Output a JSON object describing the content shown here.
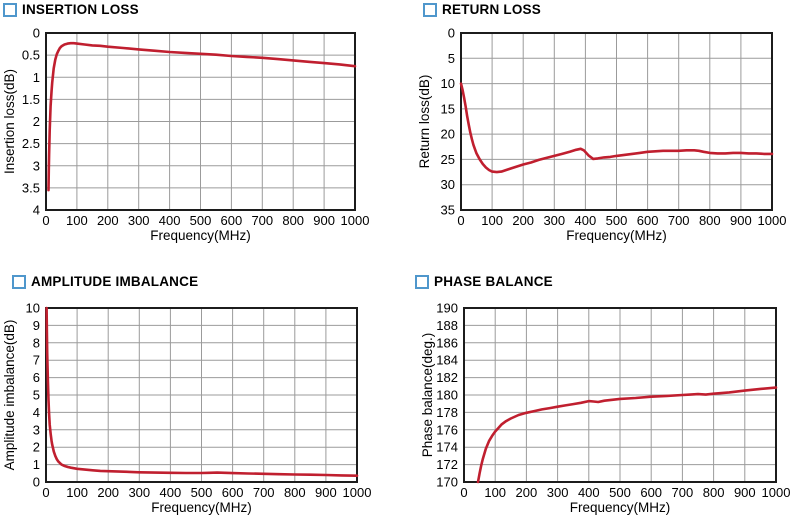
{
  "colors": {
    "curve": "#c01f2f",
    "grid_major": "#9b9b9b",
    "axis_border": "#1c1c1c",
    "title_square": "#4f97cc",
    "text": "#000000",
    "background": "#ffffff"
  },
  "chart_data": [
    {
      "type": "line",
      "title": "INSERTION LOSS",
      "xlabel": "Frequency(MHz)",
      "ylabel": "Insertion loss(dB)",
      "xlim": [
        0,
        1000
      ],
      "ylim": [
        0,
        4
      ],
      "y_inverted": true,
      "grid": "major",
      "legend": "none",
      "xticks": [
        0,
        100,
        200,
        300,
        400,
        500,
        600,
        700,
        800,
        900,
        1000
      ],
      "yticks": [
        0,
        0.5,
        1,
        1.5,
        2,
        2.5,
        3,
        3.5,
        4
      ],
      "series": [
        {
          "name": "Insertion loss",
          "points": [
            [
              8,
              3.55
            ],
            [
              9,
              3.1
            ],
            [
              10,
              2.75
            ],
            [
              12,
              2.2
            ],
            [
              15,
              1.65
            ],
            [
              18,
              1.3
            ],
            [
              20,
              1.12
            ],
            [
              25,
              0.8
            ],
            [
              30,
              0.6
            ],
            [
              35,
              0.48
            ],
            [
              40,
              0.4
            ],
            [
              45,
              0.34
            ],
            [
              50,
              0.3
            ],
            [
              60,
              0.26
            ],
            [
              70,
              0.24
            ],
            [
              80,
              0.23
            ],
            [
              90,
              0.23
            ],
            [
              100,
              0.24
            ],
            [
              125,
              0.26
            ],
            [
              150,
              0.28
            ],
            [
              175,
              0.29
            ],
            [
              200,
              0.31
            ],
            [
              250,
              0.34
            ],
            [
              300,
              0.37
            ],
            [
              350,
              0.4
            ],
            [
              400,
              0.43
            ],
            [
              450,
              0.45
            ],
            [
              500,
              0.47
            ],
            [
              550,
              0.49
            ],
            [
              600,
              0.52
            ],
            [
              650,
              0.54
            ],
            [
              700,
              0.56
            ],
            [
              750,
              0.59
            ],
            [
              800,
              0.62
            ],
            [
              850,
              0.65
            ],
            [
              900,
              0.68
            ],
            [
              950,
              0.71
            ],
            [
              1000,
              0.75
            ]
          ]
        }
      ]
    },
    {
      "type": "line",
      "title": "RETURN LOSS",
      "xlabel": "Frequency(MHz)",
      "ylabel": "Return loss(dB)",
      "xlim": [
        0,
        1000
      ],
      "ylim": [
        0,
        35
      ],
      "y_inverted": true,
      "grid": "major",
      "legend": "none",
      "xticks": [
        0,
        100,
        200,
        300,
        400,
        500,
        600,
        700,
        800,
        900,
        1000
      ],
      "yticks": [
        0,
        5,
        10,
        15,
        20,
        25,
        30,
        35
      ],
      "series": [
        {
          "name": "Return loss",
          "points": [
            [
              0,
              10
            ],
            [
              5,
              11.3
            ],
            [
              10,
              12.8
            ],
            [
              15,
              14.6
            ],
            [
              20,
              16.5
            ],
            [
              25,
              18.2
            ],
            [
              30,
              19.7
            ],
            [
              35,
              21
            ],
            [
              40,
              22.1
            ],
            [
              45,
              23
            ],
            [
              50,
              23.8
            ],
            [
              60,
              25
            ],
            [
              70,
              25.9
            ],
            [
              80,
              26.6
            ],
            [
              90,
              27.1
            ],
            [
              100,
              27.4
            ],
            [
              115,
              27.5
            ],
            [
              130,
              27.4
            ],
            [
              150,
              27
            ],
            [
              175,
              26.5
            ],
            [
              200,
              26
            ],
            [
              225,
              25.6
            ],
            [
              250,
              25.1
            ],
            [
              275,
              24.7
            ],
            [
              300,
              24.3
            ],
            [
              325,
              23.9
            ],
            [
              350,
              23.5
            ],
            [
              370,
              23.1
            ],
            [
              385,
              22.9
            ],
            [
              395,
              23.2
            ],
            [
              410,
              24.2
            ],
            [
              425,
              24.9
            ],
            [
              440,
              24.8
            ],
            [
              460,
              24.6
            ],
            [
              480,
              24.5
            ],
            [
              500,
              24.3
            ],
            [
              525,
              24.1
            ],
            [
              550,
              23.9
            ],
            [
              575,
              23.7
            ],
            [
              600,
              23.5
            ],
            [
              625,
              23.4
            ],
            [
              650,
              23.3
            ],
            [
              675,
              23.3
            ],
            [
              700,
              23.3
            ],
            [
              725,
              23.2
            ],
            [
              750,
              23.2
            ],
            [
              765,
              23.3
            ],
            [
              780,
              23.5
            ],
            [
              800,
              23.7
            ],
            [
              825,
              23.8
            ],
            [
              850,
              23.8
            ],
            [
              875,
              23.7
            ],
            [
              900,
              23.7
            ],
            [
              925,
              23.8
            ],
            [
              950,
              23.8
            ],
            [
              975,
              23.9
            ],
            [
              1000,
              23.9
            ]
          ]
        }
      ]
    },
    {
      "type": "line",
      "title": "AMPLITUDE IMBALANCE",
      "xlabel": "Frequency(MHz)",
      "ylabel": "Amplitude imbalance(dB)",
      "xlim": [
        0,
        1000
      ],
      "ylim": [
        0,
        10
      ],
      "y_inverted": false,
      "grid": "major",
      "legend": "none",
      "xticks": [
        0,
        100,
        200,
        300,
        400,
        500,
        600,
        700,
        800,
        900,
        1000
      ],
      "yticks": [
        0,
        1,
        2,
        3,
        4,
        5,
        6,
        7,
        8,
        9,
        10
      ],
      "series": [
        {
          "name": "Amplitude imbalance",
          "points": [
            [
              2,
              10
            ],
            [
              3,
              8.6
            ],
            [
              4,
              7.4
            ],
            [
              5,
              6.5
            ],
            [
              6,
              5.8
            ],
            [
              8,
              4.7
            ],
            [
              10,
              3.9
            ],
            [
              12,
              3.3
            ],
            [
              15,
              2.75
            ],
            [
              18,
              2.35
            ],
            [
              20,
              2.15
            ],
            [
              25,
              1.75
            ],
            [
              30,
              1.5
            ],
            [
              35,
              1.3
            ],
            [
              40,
              1.17
            ],
            [
              50,
              1
            ],
            [
              60,
              0.92
            ],
            [
              70,
              0.86
            ],
            [
              80,
              0.82
            ],
            [
              100,
              0.76
            ],
            [
              125,
              0.71
            ],
            [
              150,
              0.67
            ],
            [
              175,
              0.64
            ],
            [
              200,
              0.62
            ],
            [
              250,
              0.59
            ],
            [
              300,
              0.56
            ],
            [
              350,
              0.54
            ],
            [
              400,
              0.53
            ],
            [
              450,
              0.52
            ],
            [
              500,
              0.52
            ],
            [
              525,
              0.53
            ],
            [
              550,
              0.54
            ],
            [
              575,
              0.53
            ],
            [
              600,
              0.51
            ],
            [
              650,
              0.49
            ],
            [
              700,
              0.47
            ],
            [
              750,
              0.45
            ],
            [
              800,
              0.43
            ],
            [
              850,
              0.42
            ],
            [
              900,
              0.4
            ],
            [
              950,
              0.38
            ],
            [
              1000,
              0.36
            ]
          ]
        }
      ]
    },
    {
      "type": "line",
      "title": "PHASE BALANCE",
      "xlabel": "Frequency(MHz)",
      "ylabel": "Phase balance(deg.)",
      "xlim": [
        0,
        1000
      ],
      "ylim": [
        170,
        190
      ],
      "y_inverted": false,
      "grid": "major",
      "legend": "none",
      "xticks": [
        0,
        100,
        200,
        300,
        400,
        500,
        600,
        700,
        800,
        900,
        1000
      ],
      "yticks": [
        170,
        172,
        174,
        176,
        178,
        180,
        182,
        184,
        186,
        188,
        190
      ],
      "series": [
        {
          "name": "Phase balance",
          "points": [
            [
              45,
              170
            ],
            [
              50,
              171
            ],
            [
              55,
              171.9
            ],
            [
              60,
              172.6
            ],
            [
              70,
              173.8
            ],
            [
              80,
              174.7
            ],
            [
              90,
              175.3
            ],
            [
              100,
              175.8
            ],
            [
              110,
              176.2
            ],
            [
              120,
              176.6
            ],
            [
              135,
              177
            ],
            [
              150,
              177.3
            ],
            [
              175,
              177.7
            ],
            [
              200,
              177.95
            ],
            [
              225,
              178.15
            ],
            [
              250,
              178.35
            ],
            [
              275,
              178.5
            ],
            [
              300,
              178.65
            ],
            [
              325,
              178.8
            ],
            [
              350,
              178.95
            ],
            [
              375,
              179.1
            ],
            [
              400,
              179.3
            ],
            [
              415,
              179.25
            ],
            [
              430,
              179.2
            ],
            [
              450,
              179.35
            ],
            [
              475,
              179.45
            ],
            [
              500,
              179.55
            ],
            [
              550,
              179.65
            ],
            [
              600,
              179.8
            ],
            [
              650,
              179.9
            ],
            [
              700,
              180
            ],
            [
              725,
              180.05
            ],
            [
              750,
              180.1
            ],
            [
              775,
              180.05
            ],
            [
              800,
              180.15
            ],
            [
              850,
              180.3
            ],
            [
              900,
              180.5
            ],
            [
              950,
              180.7
            ],
            [
              1000,
              180.85
            ]
          ]
        }
      ]
    }
  ]
}
